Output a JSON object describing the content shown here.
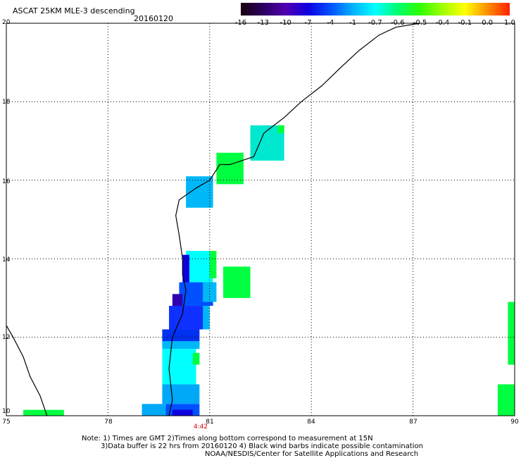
{
  "header": {
    "title": "ASCAT 25KM MLE-3 descending",
    "date": "20160120"
  },
  "colorbar": {
    "labels": [
      "-16",
      "-13",
      "-10",
      "-7",
      "-4",
      "-1",
      "-0.7",
      "-0.6",
      "-0.5",
      "-0.4",
      "-0.1",
      "0.0",
      "1.0"
    ],
    "colors": [
      "#1a0010",
      "#2a0060",
      "#5000b0",
      "#1000e0",
      "#0050ff",
      "#00b0ff",
      "#00ffff",
      "#00ff70",
      "#30ff00",
      "#a0ff00",
      "#ffff00",
      "#ff9000",
      "#ff2000"
    ]
  },
  "map": {
    "lon_range": [
      75,
      90
    ],
    "lat_range": [
      10,
      20
    ],
    "x_ticks": [
      "75",
      "78",
      "81",
      "84",
      "87",
      "90"
    ],
    "y_ticks": [
      "20",
      "18",
      "16",
      "14",
      "12",
      "10"
    ],
    "pass_time": "4:42"
  },
  "cells": [
    {
      "lon": [
        82.2,
        83.2
      ],
      "lat": [
        16.5,
        17.4
      ],
      "color": "#00e8d0"
    },
    {
      "lon": [
        83.0,
        83.2
      ],
      "lat": [
        17.2,
        17.4
      ],
      "color": "#00ff40"
    },
    {
      "lon": [
        81.2,
        82.0
      ],
      "lat": [
        15.9,
        16.7
      ],
      "color": "#00ff40"
    },
    {
      "lon": [
        80.3,
        81.1
      ],
      "lat": [
        15.3,
        16.1
      ],
      "color": "#00b8f8"
    },
    {
      "lon": [
        80.3,
        81.1
      ],
      "lat": [
        13.4,
        14.2
      ],
      "color": "#00ffff"
    },
    {
      "lon": [
        81.0,
        81.2
      ],
      "lat": [
        13.5,
        14.2
      ],
      "color": "#00ff40"
    },
    {
      "lon": [
        80.2,
        80.4
      ],
      "lat": [
        13.1,
        14.1
      ],
      "color": "#1000e0"
    },
    {
      "lon": [
        81.4,
        82.2
      ],
      "lat": [
        13.0,
        13.8
      ],
      "color": "#00ff40"
    },
    {
      "lon": [
        80.1,
        81.1
      ],
      "lat": [
        12.8,
        13.4
      ],
      "color": "#0050ff"
    },
    {
      "lon": [
        80.8,
        81.2
      ],
      "lat": [
        12.9,
        13.4
      ],
      "color": "#00b8f8"
    },
    {
      "lon": [
        79.9,
        80.2
      ],
      "lat": [
        12.7,
        13.1
      ],
      "color": "#3000b0"
    },
    {
      "lon": [
        79.8,
        80.9
      ],
      "lat": [
        12.2,
        12.8
      ],
      "color": "#1030ff"
    },
    {
      "lon": [
        80.8,
        81.0
      ],
      "lat": [
        12.2,
        12.8
      ],
      "color": "#00b8f8"
    },
    {
      "lon": [
        79.6,
        80.7
      ],
      "lat": [
        11.8,
        12.2
      ],
      "color": "#0030f0"
    },
    {
      "lon": [
        79.6,
        80.7
      ],
      "lat": [
        11.7,
        11.9
      ],
      "color": "#00b8f8"
    },
    {
      "lon": [
        79.6,
        80.6
      ],
      "lat": [
        11.3,
        11.7
      ],
      "color": "#00ffff"
    },
    {
      "lon": [
        80.5,
        80.7
      ],
      "lat": [
        11.3,
        11.6
      ],
      "color": "#00ff40"
    },
    {
      "lon": [
        79.6,
        80.6
      ],
      "lat": [
        10.8,
        11.3
      ],
      "color": "#00ffff"
    },
    {
      "lon": [
        79.6,
        80.7
      ],
      "lat": [
        10.3,
        10.8
      ],
      "color": "#00a8f8"
    },
    {
      "lon": [
        79.0,
        79.7
      ],
      "lat": [
        10.0,
        10.3
      ],
      "color": "#00a8f8"
    },
    {
      "lon": [
        79.7,
        80.7
      ],
      "lat": [
        10.0,
        10.3
      ],
      "color": "#0050ff"
    },
    {
      "lon": [
        79.9,
        80.5
      ],
      "lat": [
        10.0,
        10.15
      ],
      "color": "#1000e0"
    },
    {
      "lon": [
        75.5,
        76.7
      ],
      "lat": [
        10.0,
        10.15
      ],
      "color": "#00ff40"
    },
    {
      "lon": [
        89.8,
        90.0
      ],
      "lat": [
        11.3,
        12.9
      ],
      "color": "#00ff40"
    },
    {
      "lon": [
        89.5,
        90.0
      ],
      "lat": [
        10.0,
        10.8
      ],
      "color": "#00ff40"
    }
  ],
  "coastline": [
    [
      76.2,
      10.0
    ],
    [
      76.0,
      10.5
    ],
    [
      75.7,
      11.0
    ],
    [
      75.5,
      11.5
    ],
    [
      75.2,
      12.0
    ],
    [
      75.0,
      12.3
    ],
    [
      79.8,
      10.0
    ],
    [
      79.9,
      10.4
    ],
    [
      79.85,
      10.8
    ],
    [
      79.8,
      11.2
    ],
    [
      79.85,
      11.6
    ],
    [
      79.9,
      12.0
    ],
    [
      80.2,
      12.6
    ],
    [
      80.3,
      13.2
    ],
    [
      80.2,
      13.6
    ],
    [
      80.2,
      14.0
    ],
    [
      80.1,
      14.6
    ],
    [
      80.0,
      15.1
    ],
    [
      80.1,
      15.5
    ],
    [
      80.6,
      15.8
    ],
    [
      81.0,
      16.0
    ],
    [
      81.3,
      16.4
    ],
    [
      81.6,
      16.4
    ],
    [
      82.3,
      16.6
    ],
    [
      82.6,
      17.2
    ],
    [
      83.2,
      17.6
    ],
    [
      83.7,
      18.0
    ],
    [
      84.3,
      18.4
    ],
    [
      84.9,
      18.9
    ],
    [
      85.4,
      19.3
    ],
    [
      86.0,
      19.7
    ],
    [
      86.5,
      19.9
    ],
    [
      87.2,
      20.0
    ]
  ],
  "notes": [
    "Note: 1) Times are GMT 2)Times along bottom correspond to measurement at 15N",
    "3)Data buffer is 22 hrs from 20160120 4) Black wind barbs indicate possible contamination",
    "NOAA/NESDIS/Center for Satellite Applications and Research"
  ]
}
